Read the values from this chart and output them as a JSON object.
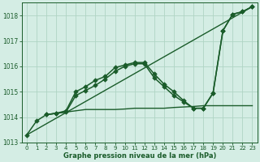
{
  "title": "Graphe pression niveau de la mer (hPa)",
  "bg_color": "#d4ede4",
  "grid_color": "#b0d4c4",
  "line_color": "#1a5c2a",
  "ylim": [
    1013.0,
    1018.5
  ],
  "xlim": [
    -0.5,
    23.5
  ],
  "yticks": [
    1013,
    1014,
    1015,
    1016,
    1017,
    1018
  ],
  "xticks": [
    0,
    1,
    2,
    3,
    4,
    5,
    6,
    7,
    8,
    9,
    10,
    11,
    12,
    13,
    14,
    15,
    16,
    17,
    18,
    19,
    20,
    21,
    22,
    23
  ],
  "series": [
    {
      "x": [
        0,
        1,
        2,
        3,
        4,
        5,
        6,
        7,
        8,
        9,
        10,
        11,
        12,
        13,
        14,
        15,
        16,
        17,
        18,
        19,
        20,
        21,
        22,
        23
      ],
      "y": [
        1013.3,
        1013.85,
        1014.1,
        1014.15,
        1014.2,
        1014.85,
        1015.05,
        1015.25,
        1015.5,
        1015.8,
        1016.0,
        1016.1,
        1016.1,
        1015.55,
        1015.2,
        1014.85,
        1014.6,
        1014.35,
        1014.35,
        1014.95,
        1017.4,
        1018.05,
        1018.15,
        1018.35
      ],
      "marker": "D",
      "markersize": 2.8,
      "linewidth": 1.1
    },
    {
      "x": [
        2,
        3,
        4,
        5,
        6,
        7,
        8,
        9,
        10,
        11,
        12,
        13,
        14,
        15,
        16,
        17,
        18,
        19,
        20,
        21,
        22,
        23
      ],
      "y": [
        1014.1,
        1014.15,
        1014.25,
        1015.0,
        1015.2,
        1015.45,
        1015.6,
        1015.95,
        1016.05,
        1016.15,
        1016.15,
        1015.7,
        1015.3,
        1015.0,
        1014.65,
        1014.35,
        1014.35,
        1014.95,
        1017.4,
        1018.05,
        1018.15,
        1018.35
      ],
      "marker": "D",
      "markersize": 2.8,
      "linewidth": 1.1
    },
    {
      "x": [
        2,
        3,
        4,
        5,
        6,
        7,
        8,
        9,
        10,
        11,
        12,
        13,
        14,
        15,
        16,
        17,
        18,
        19,
        20,
        21,
        22,
        23
      ],
      "y": [
        1014.1,
        1014.15,
        1014.2,
        1014.25,
        1014.3,
        1014.3,
        1014.3,
        1014.3,
        1014.32,
        1014.35,
        1014.35,
        1014.35,
        1014.35,
        1014.38,
        1014.4,
        1014.42,
        1014.45,
        1014.45,
        1014.45,
        1014.45,
        1014.45,
        1014.45
      ],
      "marker": null,
      "markersize": 0,
      "linewidth": 1.0
    },
    {
      "x": [
        0,
        23
      ],
      "y": [
        1013.3,
        1018.35
      ],
      "marker": null,
      "markersize": 0,
      "linewidth": 1.0
    }
  ]
}
